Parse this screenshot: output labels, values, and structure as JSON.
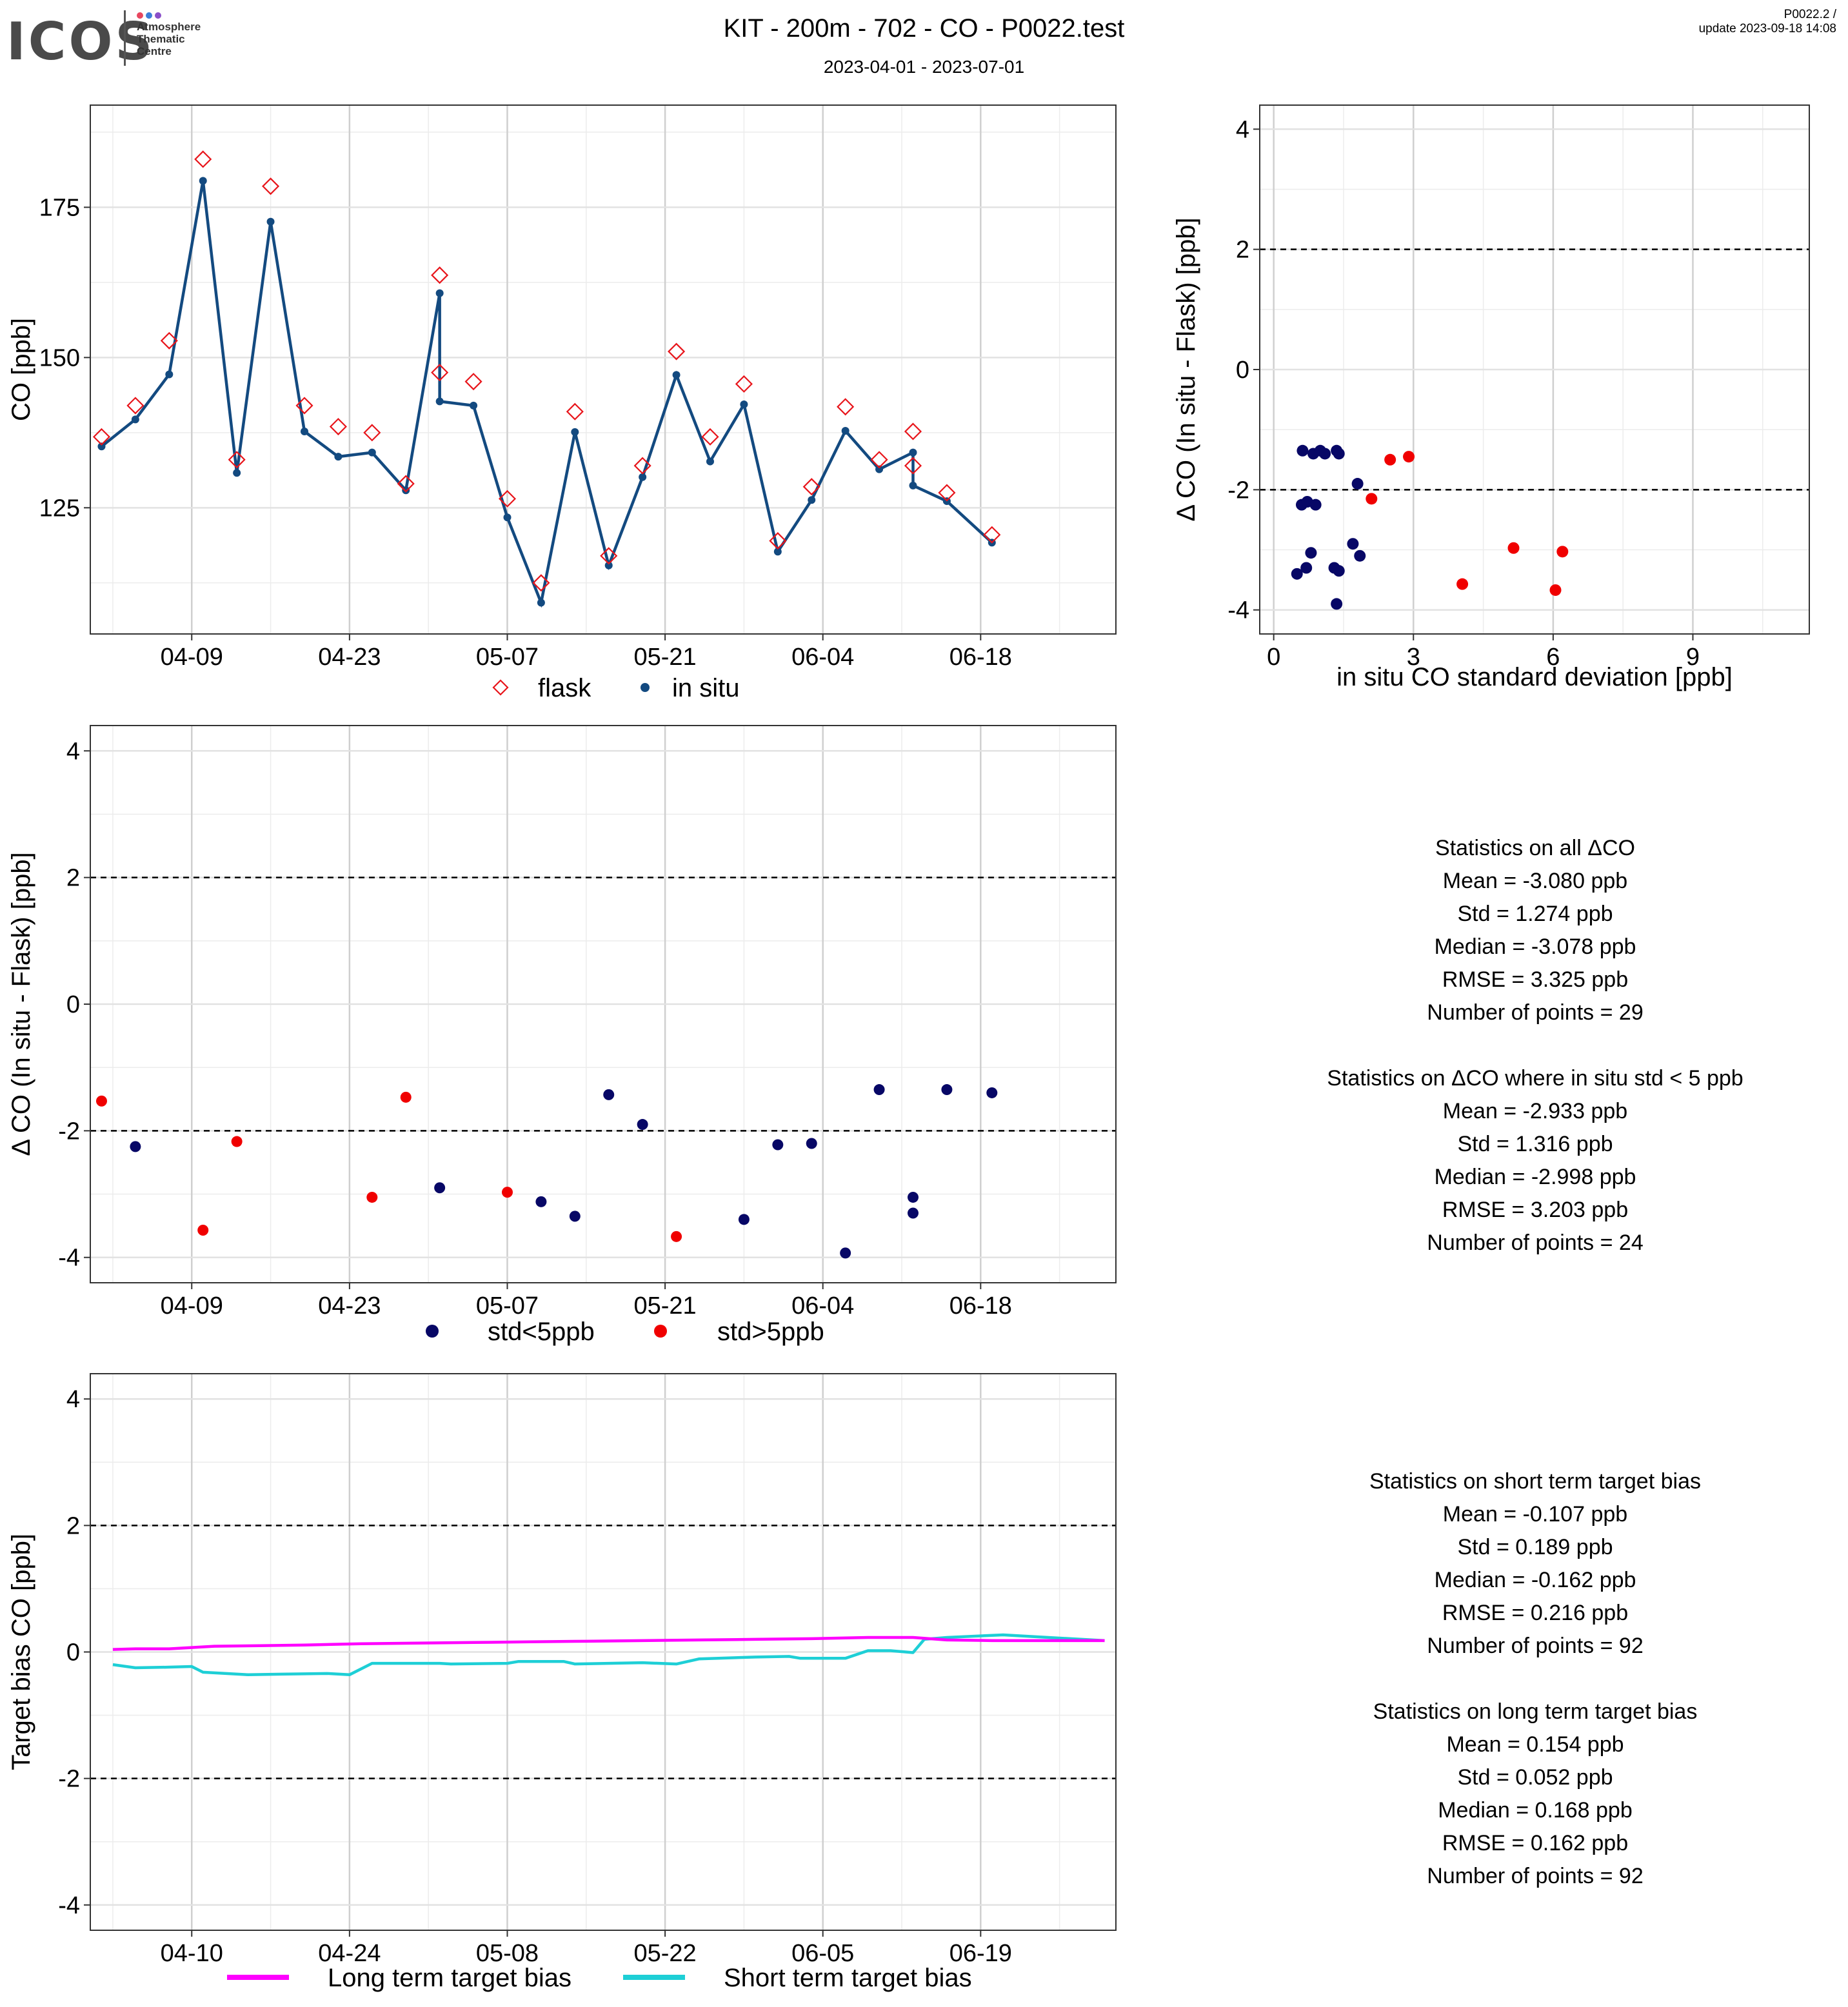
{
  "header": {
    "logo": "ICOS",
    "logo_dot_colors": [
      "#e8475f",
      "#3d7fd9",
      "#8a4fc9"
    ],
    "logo_sub": [
      "Atmosphere",
      "Thematic",
      "Centre"
    ],
    "title": "KIT - 200m - 702 - CO - P0022.test",
    "subtitle": "2023-04-01 - 2023-07-01",
    "corner_line1": "P0022.2 /",
    "corner_line2": "update  2023-09-18 14:08"
  },
  "colors": {
    "flask": "#e8141a",
    "insitu": "#134a80",
    "std_low": "#070766",
    "std_high": "#f00000",
    "long_term": "#ff00ff",
    "short_term": "#1ecfd6"
  },
  "chart_data": [
    {
      "id": "timeseries",
      "type": "line",
      "ylabel": "CO [ppb]",
      "xlabel": "",
      "x_ticks": [
        "04-09",
        "04-23",
        "05-07",
        "05-21",
        "06-04",
        "06-18"
      ],
      "y_ticks": [
        "125",
        "150",
        "175"
      ],
      "xlim": [
        "2023-03-31",
        "2023-06-30"
      ],
      "ylim": [
        104,
        192
      ],
      "series": [
        {
          "name": "flask",
          "marker": "diamond",
          "x": [
            "2023-04-01",
            "2023-04-04",
            "2023-04-07",
            "2023-04-10",
            "2023-04-13",
            "2023-04-16",
            "2023-04-19",
            "2023-04-22",
            "2023-04-25",
            "2023-04-28",
            "2023-05-01",
            "2023-05-01",
            "2023-05-04",
            "2023-05-07",
            "2023-05-10",
            "2023-05-13",
            "2023-05-16",
            "2023-05-19",
            "2023-05-22",
            "2023-05-25",
            "2023-05-28",
            "2023-05-31",
            "2023-06-03",
            "2023-06-06",
            "2023-06-09",
            "2023-06-12",
            "2023-06-12",
            "2023-06-15",
            "2023-06-19"
          ],
          "values": [
            136.8,
            142.0,
            152.8,
            183.0,
            133.0,
            178.5,
            142.0,
            138.5,
            137.5,
            129.0,
            163.7,
            147.5,
            146.0,
            126.5,
            112.5,
            141.0,
            117.0,
            132.0,
            151.0,
            136.8,
            145.6,
            119.5,
            128.5,
            141.8,
            133.0,
            137.7,
            132.0,
            127.5,
            120.5
          ]
        },
        {
          "name": "in situ",
          "marker": "point",
          "x": [
            "2023-04-01",
            "2023-04-04",
            "2023-04-07",
            "2023-04-10",
            "2023-04-13",
            "2023-04-16",
            "2023-04-19",
            "2023-04-22",
            "2023-04-25",
            "2023-04-28",
            "2023-05-01",
            "2023-05-01",
            "2023-05-04",
            "2023-05-07",
            "2023-05-10",
            "2023-05-13",
            "2023-05-16",
            "2023-05-19",
            "2023-05-22",
            "2023-05-25",
            "2023-05-28",
            "2023-05-31",
            "2023-06-03",
            "2023-06-06",
            "2023-06-09",
            "2023-06-12",
            "2023-06-12",
            "2023-06-15",
            "2023-06-19"
          ],
          "values": [
            135.2,
            139.7,
            147.2,
            179.4,
            130.8,
            172.6,
            137.7,
            133.5,
            134.2,
            127.9,
            160.7,
            142.7,
            142.0,
            123.4,
            109.2,
            137.6,
            115.4,
            130.1,
            147.1,
            132.7,
            142.2,
            117.7,
            126.3,
            137.8,
            131.4,
            134.2,
            128.7,
            126.1,
            119.2
          ]
        }
      ]
    },
    {
      "id": "scatter_std",
      "type": "scatter",
      "xlabel": "in situ CO standard deviation [ppb]",
      "ylabel": "Δ CO (In situ - Flask) [ppb]",
      "x_ticks": [
        "0",
        "3",
        "6",
        "9"
      ],
      "y_ticks": [
        "-4",
        "-2",
        "0",
        "2",
        "4"
      ],
      "xlim": [
        -0.3,
        11.5
      ],
      "ylim": [
        -4.4,
        4.4
      ],
      "hlines": [
        2,
        -2
      ],
      "series": [
        {
          "name": "std<5ppb",
          "x": [
            0.5,
            0.6,
            0.62,
            0.7,
            0.72,
            0.8,
            0.85,
            0.9,
            1.0,
            1.1,
            1.3,
            1.35,
            1.35,
            1.4,
            1.4,
            1.7,
            1.8,
            1.85
          ],
          "values": [
            -3.4,
            -2.25,
            -1.35,
            -3.3,
            -2.2,
            -3.05,
            -1.4,
            -2.25,
            -1.35,
            -1.4,
            -3.3,
            -3.9,
            -1.35,
            -1.4,
            -3.35,
            -2.9,
            -1.9,
            -3.1
          ]
        },
        {
          "name": "std>5ppb",
          "x": [
            2.1,
            2.5,
            2.9,
            4.05,
            5.15,
            6.05,
            6.2
          ],
          "values": [
            -2.15,
            -1.5,
            -1.45,
            -3.57,
            -2.97,
            -3.67,
            -3.03
          ]
        }
      ]
    },
    {
      "id": "delta_timeseries",
      "type": "scatter",
      "ylabel": "Δ CO (In situ - Flask) [ppb]",
      "xlabel": "",
      "x_ticks": [
        "04-09",
        "04-23",
        "05-07",
        "05-21",
        "06-04",
        "06-18"
      ],
      "y_ticks": [
        "-4",
        "-2",
        "0",
        "2",
        "4"
      ],
      "xlim": [
        "2023-03-31",
        "2023-06-30"
      ],
      "ylim": [
        -4.4,
        4.4
      ],
      "hlines": [
        2,
        -2
      ],
      "series": [
        {
          "name": "std<5ppb",
          "x": [
            "2023-04-04",
            "2023-05-01",
            "2023-05-10",
            "2023-05-13",
            "2023-05-16",
            "2023-05-19",
            "2023-05-28",
            "2023-05-31",
            "2023-06-03",
            "2023-06-06",
            "2023-06-09",
            "2023-06-12",
            "2023-06-12",
            "2023-06-15",
            "2023-06-19"
          ],
          "values": [
            -2.25,
            -2.9,
            -3.12,
            -3.35,
            -1.43,
            -1.9,
            -3.4,
            -2.22,
            -2.2,
            -3.93,
            -1.35,
            -3.05,
            -3.3,
            -1.35,
            -1.4
          ]
        },
        {
          "name": "std>5ppb",
          "x": [
            "2023-04-01",
            "2023-04-10",
            "2023-04-13",
            "2023-04-25",
            "2023-04-28",
            "2023-05-07",
            "2023-05-22"
          ],
          "values": [
            -1.53,
            -3.57,
            -2.17,
            -3.05,
            -1.47,
            -2.97,
            -3.67
          ]
        }
      ]
    },
    {
      "id": "target_bias",
      "type": "line",
      "ylabel": "Target bias CO [ppb]",
      "xlabel": "",
      "x_ticks": [
        "04-10",
        "04-24",
        "05-08",
        "05-22",
        "06-05",
        "06-19"
      ],
      "y_ticks": [
        "-4",
        "-2",
        "0",
        "2",
        "4"
      ],
      "xlim": [
        "2023-04-01",
        "2023-07-01"
      ],
      "ylim": [
        -4.4,
        4.4
      ],
      "hlines": [
        2,
        -2
      ],
      "series": [
        {
          "name": "Long term target bias",
          "x": [
            "2023-04-03",
            "2023-04-05",
            "2023-04-08",
            "2023-04-12",
            "2023-04-16",
            "2023-04-20",
            "2023-04-25",
            "2023-04-30",
            "2023-05-05",
            "2023-05-10",
            "2023-05-15",
            "2023-05-20",
            "2023-05-25",
            "2023-05-30",
            "2023-06-04",
            "2023-06-09",
            "2023-06-13",
            "2023-06-16",
            "2023-06-20",
            "2023-06-25",
            "2023-06-30"
          ],
          "values": [
            0.04,
            0.05,
            0.05,
            0.09,
            0.1,
            0.11,
            0.13,
            0.14,
            0.15,
            0.16,
            0.17,
            0.18,
            0.19,
            0.2,
            0.21,
            0.23,
            0.23,
            0.19,
            0.18,
            0.18,
            0.18
          ]
        },
        {
          "name": "Short term target bias",
          "x": [
            "2023-04-03",
            "2023-04-05",
            "2023-04-08",
            "2023-04-10",
            "2023-04-11",
            "2023-04-15",
            "2023-04-18",
            "2023-04-22",
            "2023-04-24",
            "2023-04-26",
            "2023-05-02",
            "2023-05-03",
            "2023-05-08",
            "2023-05-09",
            "2023-05-13",
            "2023-05-14",
            "2023-05-20",
            "2023-05-23",
            "2023-05-25",
            "2023-05-30",
            "2023-06-02",
            "2023-06-03",
            "2023-06-07",
            "2023-06-09",
            "2023-06-11",
            "2023-06-13",
            "2023-06-14",
            "2023-06-16",
            "2023-06-21",
            "2023-06-24",
            "2023-06-30"
          ],
          "values": [
            -0.2,
            -0.25,
            -0.24,
            -0.23,
            -0.32,
            -0.36,
            -0.35,
            -0.34,
            -0.36,
            -0.18,
            -0.18,
            -0.19,
            -0.18,
            -0.15,
            -0.15,
            -0.19,
            -0.17,
            -0.19,
            -0.11,
            -0.08,
            -0.07,
            -0.1,
            -0.1,
            0.02,
            0.02,
            -0.01,
            0.2,
            0.23,
            0.27,
            0.24,
            0.18
          ]
        }
      ]
    }
  ],
  "legends": {
    "timeseries": [
      "flask",
      "in situ"
    ],
    "delta": [
      "std<5ppb",
      "std>5ppb"
    ],
    "bias": [
      "Long term target bias",
      "Short term target bias"
    ]
  },
  "stats_flask": [
    "Statistics on all ΔCO",
    "Mean =  -3.080 ppb",
    "Std =  1.274 ppb",
    "Median =  -3.078 ppb",
    "RMSE =  3.325 ppb",
    "Number of points =  29",
    "",
    "Statistics on ΔCO where in situ std < 5 ppb",
    "Mean =  -2.933 ppb",
    "Std =  1.316 ppb",
    "Median =  -2.998 ppb",
    "RMSE =  3.203 ppb",
    "Number of points =  24"
  ],
  "stats_bias": [
    "Statistics on short term target bias",
    "Mean =  -0.107 ppb",
    "Std =  0.189 ppb",
    "Median =  -0.162 ppb",
    "RMSE =  0.216 ppb",
    "Number of points =  92",
    "",
    "Statistics on long term target bias",
    "Mean =  0.154 ppb",
    "Std =  0.052 ppb",
    "Median =  0.168 ppb",
    "RMSE =  0.162 ppb",
    "Number of points =  92"
  ]
}
